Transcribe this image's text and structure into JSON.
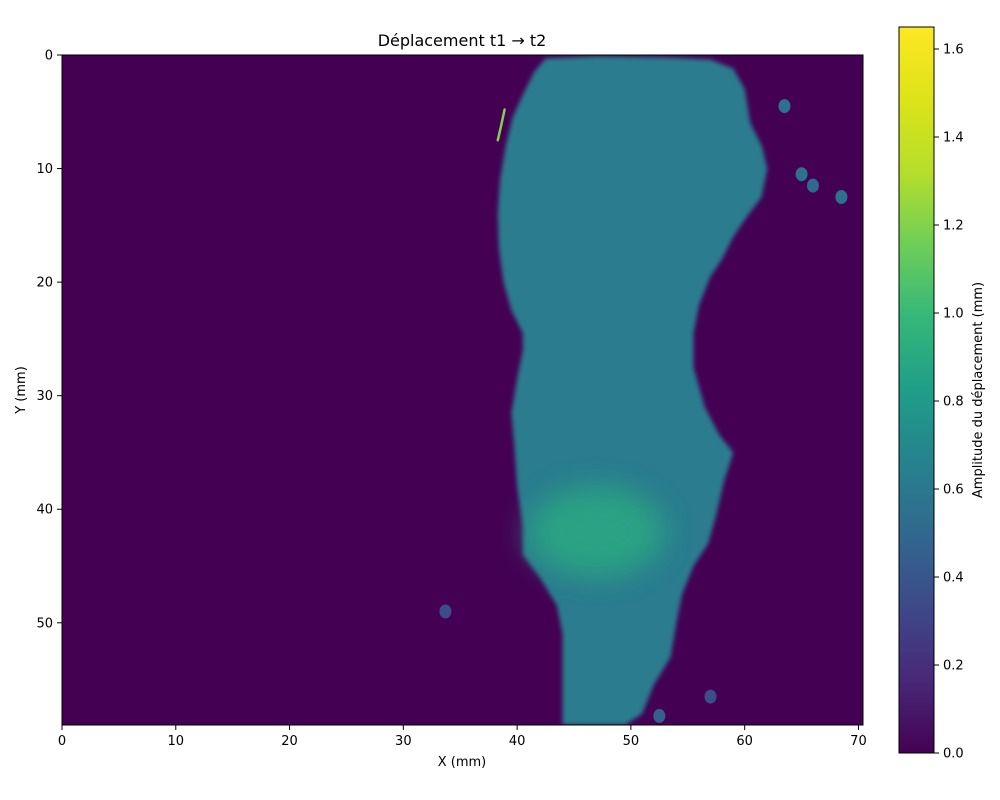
{
  "chart_data": {
    "type": "heatmap",
    "title": "Déplacement t1 → t2",
    "xlabel": "X (mm)",
    "ylabel": "Y (mm)",
    "xlim": [
      0,
      70.4
    ],
    "ylim": [
      0,
      59
    ],
    "y_inverted": true,
    "x_ticks": [
      "0",
      "10",
      "20",
      "30",
      "40",
      "50",
      "60",
      "70"
    ],
    "y_ticks": [
      "0",
      "10",
      "20",
      "30",
      "40",
      "50"
    ],
    "colorbar": {
      "label": "Amplitude du déplacement (mm)",
      "colormap": "viridis",
      "range": [
        0,
        1.65
      ],
      "ticks": [
        "0.0",
        "0.2",
        "0.4",
        "0.6",
        "0.8",
        "1.0",
        "1.2",
        "1.4",
        "1.6"
      ]
    },
    "background_value": 0.0,
    "region": {
      "description_value": "displacement field of a deforming region",
      "outline_mm": [
        [
          42.5,
          0.3
        ],
        [
          47,
          0.1
        ],
        [
          53,
          0.2
        ],
        [
          57,
          0.4
        ],
        [
          59,
          1.2
        ],
        [
          60,
          3
        ],
        [
          60.5,
          6
        ],
        [
          61.5,
          8
        ],
        [
          62,
          10
        ],
        [
          61.5,
          12.5
        ],
        [
          60,
          14.5
        ],
        [
          59,
          16
        ],
        [
          58,
          18
        ],
        [
          57,
          19.5
        ],
        [
          56,
          22
        ],
        [
          55.5,
          24.5
        ],
        [
          55.5,
          27.5
        ],
        [
          56.5,
          31
        ],
        [
          57.8,
          33.5
        ],
        [
          59,
          35
        ],
        [
          58.2,
          37.5
        ],
        [
          57.5,
          40.5
        ],
        [
          56.8,
          43
        ],
        [
          55.5,
          45
        ],
        [
          54.5,
          47.5
        ],
        [
          54,
          50
        ],
        [
          53.5,
          53
        ],
        [
          52,
          55.5
        ],
        [
          51,
          58
        ],
        [
          49.5,
          59
        ],
        [
          44,
          59
        ],
        [
          44,
          56.5
        ],
        [
          44,
          54
        ],
        [
          44,
          51
        ],
        [
          43.5,
          48.5
        ],
        [
          42,
          46
        ],
        [
          40.5,
          44
        ],
        [
          40.5,
          41.5
        ],
        [
          40,
          38
        ],
        [
          39.8,
          35
        ],
        [
          39.5,
          31.5
        ],
        [
          40,
          28.5
        ],
        [
          40.5,
          26
        ],
        [
          40.5,
          24.5
        ],
        [
          39.5,
          22.5
        ],
        [
          38.8,
          20
        ],
        [
          38.4,
          17
        ],
        [
          38.3,
          14
        ],
        [
          38.5,
          11
        ],
        [
          39,
          8
        ],
        [
          39.6,
          5.5
        ],
        [
          40.5,
          3.5
        ],
        [
          41.5,
          1.5
        ]
      ],
      "base_value": 0.62,
      "hotspot": {
        "x": 47,
        "y": 42,
        "value": 0.9
      },
      "bright_streak": {
        "points": [
          [
            38.3,
            7.5
          ],
          [
            38.6,
            6.2
          ],
          [
            38.9,
            4.8
          ]
        ],
        "value": 1.2
      },
      "blobs": [
        {
          "x": 63.5,
          "y": 4.5,
          "value": 0.55
        },
        {
          "x": 65,
          "y": 10.5,
          "value": 0.55
        },
        {
          "x": 66,
          "y": 11.5,
          "value": 0.5
        },
        {
          "x": 68.5,
          "y": 12.5,
          "value": 0.55
        },
        {
          "x": 33.7,
          "y": 49,
          "value": 0.35
        },
        {
          "x": 57,
          "y": 56.5,
          "value": 0.35
        },
        {
          "x": 52.5,
          "y": 58.2,
          "value": 0.45
        }
      ]
    }
  }
}
